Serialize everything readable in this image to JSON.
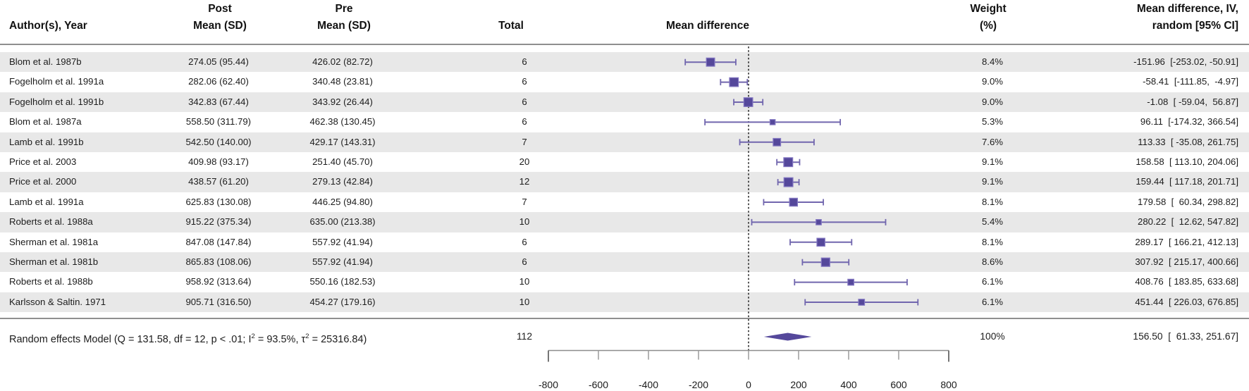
{
  "columns": {
    "author": "Author(s), Year",
    "post_line1": "Post",
    "post_line2": "Mean (SD)",
    "pre_line1": "Pre",
    "pre_line2": "Mean (SD)",
    "total": "Total",
    "plot": "Mean difference",
    "weight_line1": "Weight",
    "weight_line2": "(%)",
    "ci_line1": "Mean difference, IV,",
    "ci_line2": "random [95% CI]"
  },
  "rows": [
    {
      "author": "Blom et al. 1987b",
      "post": "274.05 (95.44)",
      "pre": "426.02 (82.72)",
      "total": "6",
      "weight": "8.4%",
      "ci": "-151.96  [-253.02, -50.91]"
    },
    {
      "author": "Fogelholm et al. 1991a",
      "post": "282.06 (62.40)",
      "pre": "340.48 (23.81)",
      "total": "6",
      "weight": "9.0%",
      "ci": "-58.41  [-111.85,  -4.97]"
    },
    {
      "author": "Fogelholm et al. 1991b",
      "post": "342.83 (67.44)",
      "pre": "343.92 (26.44)",
      "total": "6",
      "weight": "9.0%",
      "ci": "-1.08  [ -59.04,  56.87]"
    },
    {
      "author": "Blom et al. 1987a",
      "post": "558.50 (311.79)",
      "pre": "462.38 (130.45)",
      "total": "6",
      "weight": "5.3%",
      "ci": "96.11  [-174.32, 366.54]"
    },
    {
      "author": "Lamb et al. 1991b",
      "post": "542.50 (140.00)",
      "pre": "429.17 (143.31)",
      "total": "7",
      "weight": "7.6%",
      "ci": "113.33  [ -35.08, 261.75]"
    },
    {
      "author": "Price et al. 2003",
      "post": "409.98 (93.17)",
      "pre": "251.40 (45.70)",
      "total": "20",
      "weight": "9.1%",
      "ci": "158.58  [ 113.10, 204.06]"
    },
    {
      "author": "Price et al. 2000",
      "post": "438.57 (61.20)",
      "pre": "279.13 (42.84)",
      "total": "12",
      "weight": "9.1%",
      "ci": "159.44  [ 117.18, 201.71]"
    },
    {
      "author": "Lamb et al. 1991a",
      "post": "625.83 (130.08)",
      "pre": "446.25 (94.80)",
      "total": "7",
      "weight": "8.1%",
      "ci": "179.58  [  60.34, 298.82]"
    },
    {
      "author": "Roberts et al. 1988a",
      "post": "915.22 (375.34)",
      "pre": "635.00 (213.38)",
      "total": "10",
      "weight": "5.4%",
      "ci": "280.22  [  12.62, 547.82]"
    },
    {
      "author": "Sherman et al. 1981a",
      "post": "847.08 (147.84)",
      "pre": "557.92 (41.94)",
      "total": "6",
      "weight": "8.1%",
      "ci": "289.17  [ 166.21, 412.13]"
    },
    {
      "author": "Sherman et al. 1981b",
      "post": "865.83 (108.06)",
      "pre": "557.92 (41.94)",
      "total": "6",
      "weight": "8.6%",
      "ci": "307.92  [ 215.17, 400.66]"
    },
    {
      "author": "Roberts et al. 1988b",
      "post": "958.92 (313.64)",
      "pre": "550.16 (182.53)",
      "total": "10",
      "weight": "6.1%",
      "ci": "408.76  [ 183.85, 633.68]"
    },
    {
      "author": "Karlsson & Saltin. 1971",
      "post": "905.71 (316.50)",
      "pre": "454.27 (179.16)",
      "total": "10",
      "weight": "6.1%",
      "ci": "451.44  [ 226.03, 676.85]"
    }
  ],
  "summary": {
    "label_parts": {
      "p1": "Random effects Model (Q = 131.58, df = 12, p < .01; I",
      "sup1": "2",
      "p2": " = 93.5%, τ",
      "sup2": "2",
      "p3": " = 25316.84)"
    },
    "total": "112",
    "weight": "100%",
    "ci": "156.50  [  61.33, 251.67]"
  },
  "colors": {
    "band_gray": "#e8e8e8",
    "separator": "#8f8f8f",
    "marker_fill": "#55489b",
    "marker_stroke": "#8478c2",
    "ci_line": "#7166ae",
    "diamond": "#55489b",
    "zero_line": "#111111",
    "axis_line": "#8c8c8c",
    "axis_tick": "#9a9a9a",
    "axis_end_tick": "#666666",
    "axis_text": "#1a1a1a"
  },
  "chart_data": {
    "type": "forest",
    "title": "",
    "xlabel": "Mean difference",
    "effect_label": "Mean difference, IV, random [95% CI]",
    "axis": {
      "min": -800,
      "max": 800,
      "step": 200,
      "ticks": [
        -800,
        -600,
        -400,
        -200,
        0,
        200,
        400,
        600,
        800
      ],
      "zero_reference_line": true
    },
    "studies": [
      {
        "author": "Blom et al. 1987b",
        "post_mean": 274.05,
        "post_sd": 95.44,
        "pre_mean": 426.02,
        "pre_sd": 82.72,
        "total": 6,
        "weight_pct": 8.4,
        "md": -151.96,
        "ci_low": -253.02,
        "ci_high": -50.91
      },
      {
        "author": "Fogelholm et al. 1991a",
        "post_mean": 282.06,
        "post_sd": 62.4,
        "pre_mean": 340.48,
        "pre_sd": 23.81,
        "total": 6,
        "weight_pct": 9.0,
        "md": -58.41,
        "ci_low": -111.85,
        "ci_high": -4.97
      },
      {
        "author": "Fogelholm et al. 1991b",
        "post_mean": 342.83,
        "post_sd": 67.44,
        "pre_mean": 343.92,
        "pre_sd": 26.44,
        "total": 6,
        "weight_pct": 9.0,
        "md": -1.08,
        "ci_low": -59.04,
        "ci_high": 56.87
      },
      {
        "author": "Blom et al. 1987a",
        "post_mean": 558.5,
        "post_sd": 311.79,
        "pre_mean": 462.38,
        "pre_sd": 130.45,
        "total": 6,
        "weight_pct": 5.3,
        "md": 96.11,
        "ci_low": -174.32,
        "ci_high": 366.54
      },
      {
        "author": "Lamb et al. 1991b",
        "post_mean": 542.5,
        "post_sd": 140.0,
        "pre_mean": 429.17,
        "pre_sd": 143.31,
        "total": 7,
        "weight_pct": 7.6,
        "md": 113.33,
        "ci_low": -35.08,
        "ci_high": 261.75
      },
      {
        "author": "Price et al. 2003",
        "post_mean": 409.98,
        "post_sd": 93.17,
        "pre_mean": 251.4,
        "pre_sd": 45.7,
        "total": 20,
        "weight_pct": 9.1,
        "md": 158.58,
        "ci_low": 113.1,
        "ci_high": 204.06
      },
      {
        "author": "Price et al. 2000",
        "post_mean": 438.57,
        "post_sd": 61.2,
        "pre_mean": 279.13,
        "pre_sd": 42.84,
        "total": 12,
        "weight_pct": 9.1,
        "md": 159.44,
        "ci_low": 117.18,
        "ci_high": 201.71
      },
      {
        "author": "Lamb et al. 1991a",
        "post_mean": 625.83,
        "post_sd": 130.08,
        "pre_mean": 446.25,
        "pre_sd": 94.8,
        "total": 7,
        "weight_pct": 8.1,
        "md": 179.58,
        "ci_low": 60.34,
        "ci_high": 298.82
      },
      {
        "author": "Roberts et al. 1988a",
        "post_mean": 915.22,
        "post_sd": 375.34,
        "pre_mean": 635.0,
        "pre_sd": 213.38,
        "total": 10,
        "weight_pct": 5.4,
        "md": 280.22,
        "ci_low": 12.62,
        "ci_high": 547.82
      },
      {
        "author": "Sherman et al. 1981a",
        "post_mean": 847.08,
        "post_sd": 147.84,
        "pre_mean": 557.92,
        "pre_sd": 41.94,
        "total": 6,
        "weight_pct": 8.1,
        "md": 289.17,
        "ci_low": 166.21,
        "ci_high": 412.13
      },
      {
        "author": "Sherman et al. 1981b",
        "post_mean": 865.83,
        "post_sd": 108.06,
        "pre_mean": 557.92,
        "pre_sd": 41.94,
        "total": 6,
        "weight_pct": 8.6,
        "md": 307.92,
        "ci_low": 215.17,
        "ci_high": 400.66
      },
      {
        "author": "Roberts et al. 1988b",
        "post_mean": 958.92,
        "post_sd": 313.64,
        "pre_mean": 550.16,
        "pre_sd": 182.53,
        "total": 10,
        "weight_pct": 6.1,
        "md": 408.76,
        "ci_low": 183.85,
        "ci_high": 633.68
      },
      {
        "author": "Karlsson & Saltin. 1971",
        "post_mean": 905.71,
        "post_sd": 316.5,
        "pre_mean": 454.27,
        "pre_sd": 179.16,
        "total": 10,
        "weight_pct": 6.1,
        "md": 451.44,
        "ci_low": 226.03,
        "ci_high": 676.85
      }
    ],
    "summary": {
      "model": "Random effects Model",
      "Q": 131.58,
      "df": 12,
      "p": "< .01",
      "I2_pct": 93.5,
      "tau2": 25316.84,
      "total": 112,
      "weight_pct": 100,
      "md": 156.5,
      "ci_low": 61.33,
      "ci_high": 251.67
    }
  }
}
